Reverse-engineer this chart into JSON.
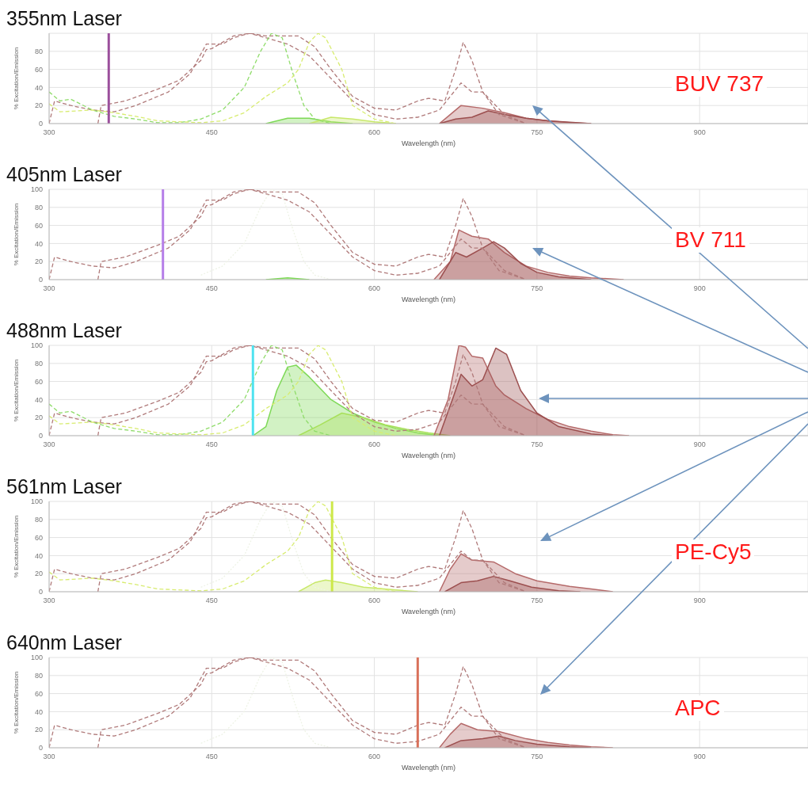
{
  "chart_data": [
    {
      "type": "line",
      "title": "355nm Laser",
      "xlabel": "Wavelength (nm)",
      "ylabel": "% Excitation/Emission",
      "xlim": [
        300,
        1000
      ],
      "xticks": [
        300,
        450,
        600,
        750,
        900
      ],
      "ylim": [
        0,
        100
      ],
      "yticks": [
        0,
        20,
        40,
        60,
        80
      ],
      "grid": true,
      "series": [
        {
          "line_style": "dashed",
          "color": "#b07a7a",
          "x": [
            345,
            348,
            370,
            400,
            420,
            440,
            445,
            450,
            460,
            470,
            485,
            500,
            530,
            545,
            560,
            580,
            600,
            620,
            640,
            650,
            665,
            675,
            682,
            690,
            700,
            715,
            740
          ],
          "values": [
            0,
            20,
            25,
            38,
            48,
            70,
            82,
            83,
            90,
            97,
            100,
            97,
            97,
            85,
            60,
            30,
            17,
            15,
            25,
            28,
            25,
            60,
            90,
            70,
            35,
            10,
            0
          ]
        },
        {
          "line_style": "dashed",
          "color": "#b07a7a",
          "x": [
            300,
            305,
            320,
            340,
            360,
            380,
            410,
            430,
            445,
            460,
            470,
            485,
            500,
            520,
            540,
            560,
            580,
            600,
            620,
            640,
            660,
            680,
            690,
            700,
            720,
            740
          ],
          "values": [
            0,
            25,
            20,
            15,
            13,
            20,
            35,
            55,
            88,
            88,
            95,
            100,
            95,
            88,
            75,
            50,
            25,
            10,
            5,
            7,
            15,
            45,
            35,
            35,
            10,
            0
          ]
        },
        {
          "line_style": "dashed",
          "color": "#8fdc6a",
          "x": [
            300,
            310,
            320,
            340,
            360,
            380,
            400,
            420,
            440,
            460,
            480,
            495,
            505,
            515,
            525,
            535,
            545,
            560
          ],
          "values": [
            35,
            25,
            27,
            15,
            8,
            5,
            1,
            1,
            5,
            15,
            40,
            80,
            100,
            95,
            55,
            20,
            5,
            0
          ]
        },
        {
          "line_style": "dashed",
          "color": "#d8ec70",
          "x": [
            300,
            310,
            340,
            360,
            380,
            400,
            440,
            460,
            480,
            500,
            520,
            530,
            540,
            548,
            555,
            570,
            580,
            600,
            620
          ],
          "values": [
            22,
            13,
            15,
            12,
            8,
            3,
            1,
            3,
            12,
            30,
            45,
            60,
            90,
            100,
            95,
            60,
            20,
            5,
            0
          ]
        },
        {
          "type": "area",
          "color": "#7ed957",
          "x": [
            500,
            520,
            540,
            560,
            580
          ],
          "values": [
            0,
            6,
            6,
            2,
            0
          ]
        },
        {
          "type": "area",
          "color": "#c8e86a",
          "x": [
            540,
            560,
            580,
            600,
            620
          ],
          "values": [
            0,
            7,
            5,
            2,
            0
          ]
        },
        {
          "type": "area",
          "color": "#b56a6a",
          "x": [
            660,
            670,
            680,
            700,
            720,
            740,
            760,
            780,
            800
          ],
          "values": [
            0,
            10,
            20,
            17,
            12,
            6,
            3,
            1,
            0
          ]
        },
        {
          "type": "area",
          "color": "#9c4f4f",
          "x": [
            660,
            675,
            690,
            705,
            720,
            740,
            760,
            800
          ],
          "values": [
            0,
            5,
            7,
            14,
            10,
            6,
            3,
            0
          ]
        }
      ],
      "ref_lines": [
        {
          "axis": "x",
          "value": 355,
          "color": "#9b4f9c"
        }
      ],
      "annotations": [
        "BUV 737"
      ]
    },
    {
      "type": "line",
      "title": "405nm Laser",
      "xlabel": "Wavelength (nm)",
      "ylabel": "% Excitation/Emission",
      "xlim": [
        300,
        1000
      ],
      "xticks": [
        300,
        450,
        600,
        750,
        900
      ],
      "ylim": [
        0,
        100
      ],
      "yticks": [
        0,
        20,
        40,
        60,
        80,
        100
      ],
      "grid": true,
      "series": [
        {
          "line_style": "dashed",
          "color": "#b07a7a",
          "x": [
            345,
            348,
            370,
            400,
            420,
            440,
            445,
            450,
            460,
            470,
            485,
            500,
            530,
            545,
            560,
            580,
            600,
            620,
            640,
            650,
            665,
            675,
            682,
            690,
            700,
            715,
            740
          ],
          "values": [
            0,
            20,
            25,
            38,
            48,
            70,
            82,
            83,
            90,
            97,
            100,
            97,
            97,
            85,
            60,
            30,
            17,
            15,
            25,
            28,
            25,
            60,
            90,
            70,
            35,
            10,
            0
          ]
        },
        {
          "line_style": "dashed",
          "color": "#b07a7a",
          "x": [
            300,
            305,
            320,
            340,
            360,
            380,
            410,
            430,
            445,
            460,
            470,
            485,
            500,
            520,
            540,
            560,
            580,
            600,
            620,
            640,
            660,
            680,
            690,
            700,
            720,
            740
          ],
          "values": [
            0,
            25,
            20,
            15,
            13,
            20,
            35,
            55,
            88,
            88,
            95,
            100,
            95,
            88,
            75,
            50,
            25,
            10,
            5,
            7,
            15,
            45,
            35,
            35,
            10,
            0
          ]
        },
        {
          "line_style": "dotted",
          "color": "#eef3e6",
          "x": [
            440,
            460,
            480,
            495,
            505,
            515,
            525,
            535,
            545,
            560
          ],
          "values": [
            5,
            15,
            40,
            80,
            100,
            95,
            55,
            20,
            5,
            0
          ]
        },
        {
          "type": "area",
          "color": "#7ed957",
          "x": [
            500,
            520,
            540
          ],
          "values": [
            0,
            2,
            0
          ]
        },
        {
          "type": "area",
          "color": "#b56a6a",
          "x": [
            655,
            670,
            678,
            690,
            705,
            720,
            740,
            760,
            780,
            800,
            830
          ],
          "values": [
            0,
            20,
            55,
            48,
            45,
            30,
            15,
            8,
            4,
            2,
            0
          ]
        },
        {
          "type": "area",
          "color": "#9c4f4f",
          "x": [
            660,
            675,
            685,
            700,
            710,
            720,
            735,
            750,
            770,
            800
          ],
          "values": [
            0,
            30,
            25,
            35,
            42,
            35,
            18,
            8,
            3,
            0
          ]
        }
      ],
      "ref_lines": [
        {
          "axis": "x",
          "value": 405,
          "color": "#b57ee8"
        }
      ],
      "annotations": [
        "BV 711"
      ]
    },
    {
      "type": "line",
      "title": "488nm Laser",
      "xlabel": "Wavelength (nm)",
      "ylabel": "% Excitation/Emission",
      "xlim": [
        300,
        1000
      ],
      "xticks": [
        300,
        450,
        600,
        750,
        900
      ],
      "ylim": [
        0,
        100
      ],
      "yticks": [
        0,
        20,
        40,
        60,
        80,
        100
      ],
      "grid": true,
      "series": [
        {
          "line_style": "dashed",
          "color": "#b07a7a",
          "x": [
            345,
            348,
            370,
            400,
            420,
            440,
            445,
            450,
            460,
            470,
            485,
            500,
            530,
            545,
            560,
            580,
            600,
            620,
            640,
            650,
            665,
            675,
            682,
            690,
            700,
            715,
            740
          ],
          "values": [
            0,
            20,
            25,
            38,
            48,
            70,
            82,
            83,
            90,
            97,
            100,
            97,
            97,
            85,
            60,
            30,
            17,
            15,
            25,
            28,
            25,
            60,
            90,
            70,
            35,
            10,
            0
          ]
        },
        {
          "line_style": "dashed",
          "color": "#b07a7a",
          "x": [
            300,
            305,
            320,
            340,
            360,
            380,
            410,
            430,
            445,
            460,
            470,
            485,
            500,
            520,
            540,
            560,
            580,
            600,
            620,
            640,
            660,
            680,
            690,
            700,
            720,
            740
          ],
          "values": [
            0,
            25,
            20,
            15,
            13,
            20,
            35,
            55,
            88,
            88,
            95,
            100,
            95,
            88,
            75,
            50,
            25,
            10,
            5,
            7,
            15,
            45,
            35,
            35,
            10,
            0
          ]
        },
        {
          "line_style": "dashed",
          "color": "#8fdc6a",
          "x": [
            300,
            310,
            320,
            340,
            360,
            380,
            400,
            420,
            440,
            460,
            480,
            495,
            505,
            515,
            525,
            535,
            545,
            560
          ],
          "values": [
            35,
            25,
            27,
            15,
            8,
            5,
            1,
            1,
            5,
            15,
            40,
            80,
            100,
            95,
            55,
            20,
            5,
            0
          ]
        },
        {
          "line_style": "dashed",
          "color": "#d8ec70",
          "x": [
            300,
            310,
            340,
            360,
            380,
            400,
            440,
            460,
            480,
            500,
            520,
            530,
            540,
            548,
            555,
            570,
            580,
            600,
            620
          ],
          "values": [
            22,
            13,
            15,
            12,
            8,
            3,
            1,
            3,
            12,
            30,
            45,
            60,
            90,
            100,
            95,
            60,
            20,
            5,
            0
          ]
        },
        {
          "type": "area",
          "color": "#7ed957",
          "x": [
            488,
            500,
            510,
            520,
            528,
            540,
            560,
            580,
            600,
            620,
            640,
            660
          ],
          "values": [
            0,
            10,
            50,
            76,
            78,
            65,
            40,
            25,
            15,
            8,
            3,
            0
          ]
        },
        {
          "type": "area",
          "color": "#a8e05a",
          "x": [
            530,
            550,
            570,
            590,
            610,
            630,
            650,
            670
          ],
          "values": [
            0,
            12,
            25,
            20,
            12,
            7,
            3,
            0
          ]
        },
        {
          "type": "area",
          "color": "#b56a6a",
          "x": [
            655,
            668,
            678,
            684,
            690,
            700,
            712,
            720,
            740,
            760,
            780,
            800,
            820,
            835
          ],
          "values": [
            0,
            40,
            100,
            98,
            88,
            86,
            55,
            45,
            30,
            18,
            10,
            5,
            1,
            0
          ]
        },
        {
          "type": "area",
          "color": "#9c4f4f",
          "x": [
            660,
            672,
            680,
            690,
            700,
            712,
            722,
            735,
            750,
            770,
            800,
            820
          ],
          "values": [
            0,
            40,
            68,
            55,
            62,
            97,
            90,
            50,
            25,
            10,
            2,
            0
          ]
        }
      ],
      "ref_lines": [
        {
          "axis": "x",
          "value": 488,
          "color": "#4fe3f0"
        }
      ]
    },
    {
      "type": "line",
      "title": "561nm Laser",
      "xlabel": "Wavelength (nm)",
      "ylabel": "% Excitation/Emission",
      "xlim": [
        300,
        1000
      ],
      "xticks": [
        300,
        450,
        600,
        750,
        900
      ],
      "ylim": [
        0,
        100
      ],
      "yticks": [
        0,
        20,
        40,
        60,
        80,
        100
      ],
      "grid": true,
      "series": [
        {
          "line_style": "dashed",
          "color": "#b07a7a",
          "x": [
            345,
            348,
            370,
            400,
            420,
            440,
            445,
            450,
            460,
            470,
            485,
            500,
            530,
            545,
            560,
            580,
            600,
            620,
            640,
            650,
            665,
            675,
            682,
            690,
            700,
            715,
            740
          ],
          "values": [
            0,
            20,
            25,
            38,
            48,
            70,
            82,
            83,
            90,
            97,
            100,
            97,
            97,
            85,
            60,
            30,
            17,
            15,
            25,
            28,
            25,
            60,
            90,
            70,
            35,
            10,
            0
          ]
        },
        {
          "line_style": "dashed",
          "color": "#b07a7a",
          "x": [
            300,
            305,
            320,
            340,
            360,
            380,
            410,
            430,
            445,
            460,
            470,
            485,
            500,
            520,
            540,
            560,
            580,
            600,
            620,
            640,
            660,
            680,
            690,
            700,
            720,
            740
          ],
          "values": [
            0,
            25,
            20,
            15,
            13,
            20,
            35,
            55,
            88,
            88,
            95,
            100,
            95,
            88,
            75,
            50,
            25,
            10,
            5,
            7,
            15,
            45,
            35,
            35,
            10,
            0
          ]
        },
        {
          "line_style": "dotted",
          "color": "#eef3e6",
          "x": [
            440,
            460,
            480,
            495,
            505,
            515,
            525,
            535,
            545,
            560
          ],
          "values": [
            5,
            15,
            40,
            80,
            100,
            95,
            55,
            20,
            5,
            0
          ]
        },
        {
          "line_style": "dashed",
          "color": "#d8ec70",
          "x": [
            300,
            310,
            340,
            360,
            380,
            400,
            440,
            460,
            480,
            500,
            520,
            530,
            540,
            548,
            555,
            570,
            580,
            600,
            620
          ],
          "values": [
            22,
            13,
            15,
            12,
            8,
            3,
            1,
            3,
            12,
            30,
            45,
            60,
            90,
            100,
            95,
            60,
            20,
            5,
            0
          ]
        },
        {
          "type": "area",
          "color": "#c8e86a",
          "x": [
            530,
            545,
            555,
            570,
            590,
            620,
            640
          ],
          "values": [
            0,
            10,
            13,
            10,
            5,
            2,
            0
          ]
        },
        {
          "type": "area",
          "color": "#b56a6a",
          "x": [
            660,
            670,
            680,
            690,
            710,
            730,
            750,
            780,
            800,
            820
          ],
          "values": [
            0,
            25,
            42,
            35,
            33,
            20,
            12,
            6,
            3,
            0
          ]
        },
        {
          "type": "area",
          "color": "#9c4f4f",
          "x": [
            665,
            680,
            695,
            710,
            725,
            745,
            770,
            790
          ],
          "values": [
            0,
            10,
            12,
            17,
            12,
            5,
            1,
            0
          ]
        }
      ],
      "ref_lines": [
        {
          "axis": "x",
          "value": 561,
          "color": "#cde84a"
        }
      ],
      "annotations": [
        "PE-Cy5"
      ]
    },
    {
      "type": "line",
      "title": "640nm Laser",
      "xlabel": "Wavelength (nm)",
      "ylabel": "% Excitation/Emission",
      "xlim": [
        300,
        1000
      ],
      "xticks": [
        300,
        450,
        600,
        750,
        900
      ],
      "ylim": [
        0,
        100
      ],
      "yticks": [
        0,
        20,
        40,
        60,
        80,
        100
      ],
      "grid": true,
      "series": [
        {
          "line_style": "dashed",
          "color": "#b07a7a",
          "x": [
            345,
            348,
            370,
            400,
            420,
            440,
            445,
            450,
            460,
            470,
            485,
            500,
            530,
            545,
            560,
            580,
            600,
            620,
            640,
            650,
            665,
            675,
            682,
            690,
            700,
            715,
            740
          ],
          "values": [
            0,
            20,
            25,
            38,
            48,
            70,
            82,
            83,
            90,
            97,
            100,
            97,
            97,
            85,
            60,
            30,
            17,
            15,
            25,
            28,
            25,
            60,
            90,
            70,
            35,
            10,
            0
          ]
        },
        {
          "line_style": "dashed",
          "color": "#b07a7a",
          "x": [
            300,
            305,
            320,
            340,
            360,
            380,
            410,
            430,
            445,
            460,
            470,
            485,
            500,
            520,
            540,
            560,
            580,
            600,
            620,
            640,
            660,
            680,
            690,
            700,
            720,
            740
          ],
          "values": [
            0,
            25,
            20,
            15,
            13,
            20,
            35,
            55,
            88,
            88,
            95,
            100,
            95,
            88,
            75,
            50,
            25,
            10,
            5,
            7,
            15,
            45,
            35,
            35,
            10,
            0
          ]
        },
        {
          "line_style": "dotted",
          "color": "#eef3e6",
          "x": [
            440,
            460,
            480,
            495,
            505,
            515,
            525,
            535,
            545,
            560
          ],
          "values": [
            5,
            15,
            40,
            80,
            100,
            95,
            55,
            20,
            5,
            0
          ]
        },
        {
          "type": "area",
          "color": "#b56a6a",
          "x": [
            660,
            670,
            680,
            695,
            715,
            740,
            760,
            780,
            800,
            820
          ],
          "values": [
            0,
            15,
            27,
            20,
            18,
            10,
            6,
            3,
            1,
            0
          ]
        },
        {
          "type": "area",
          "color": "#9c4f4f",
          "x": [
            665,
            680,
            700,
            715,
            730,
            750,
            780,
            800
          ],
          "values": [
            0,
            8,
            10,
            13,
            8,
            4,
            1,
            0
          ]
        }
      ],
      "ref_lines": [
        {
          "axis": "x",
          "value": 640,
          "color": "#d9705a"
        }
      ],
      "annotations": [
        "APC"
      ]
    }
  ]
}
